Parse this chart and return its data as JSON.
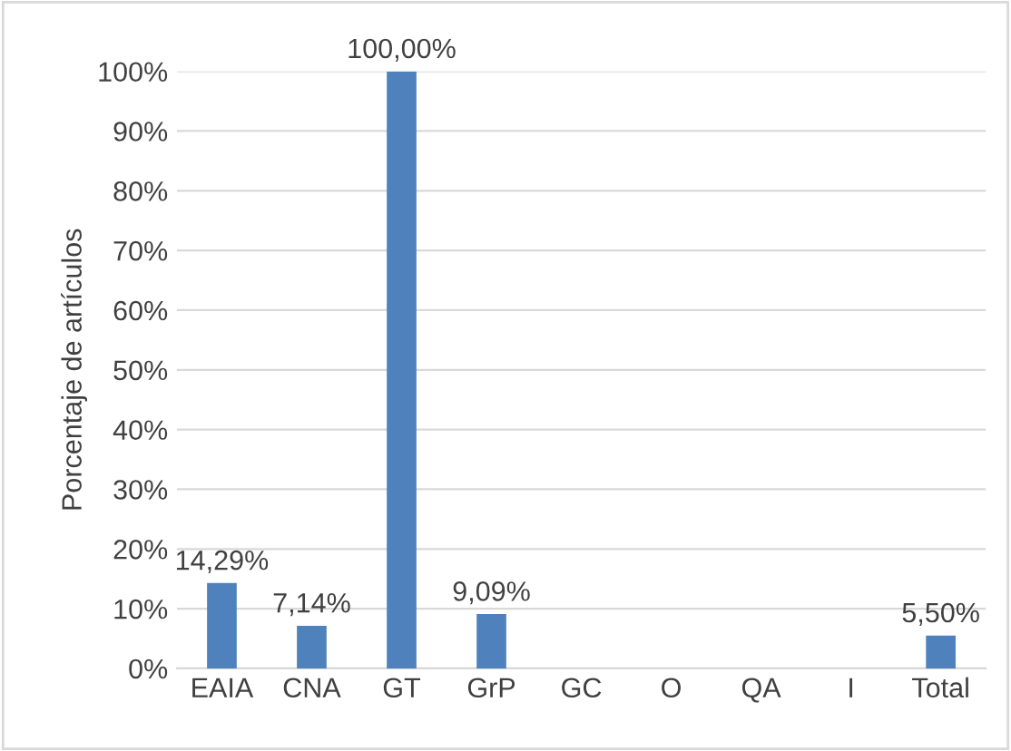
{
  "chart_data": {
    "type": "bar",
    "ylabel": "Porcentaje de artículos",
    "categories": [
      "EAIA",
      "CNA",
      "GT",
      "GrP",
      "GC",
      "O",
      "QA",
      "I",
      "Total"
    ],
    "values": [
      14.29,
      7.14,
      100,
      9.09,
      0,
      0,
      0,
      0,
      5.5
    ],
    "value_labels": [
      "14,29%",
      "7,14%",
      "100,00%",
      "9,09%",
      null,
      null,
      null,
      null,
      "5,50%"
    ],
    "color": "#4f81bd",
    "ylim": [
      0,
      100
    ],
    "yticks": [
      {
        "value": 0,
        "label": "0%"
      },
      {
        "value": 10,
        "label": "10%"
      },
      {
        "value": 20,
        "label": "20%"
      },
      {
        "value": 30,
        "label": "30%"
      },
      {
        "value": 40,
        "label": "40%"
      },
      {
        "value": 50,
        "label": "50%"
      },
      {
        "value": 60,
        "label": "60%"
      },
      {
        "value": 70,
        "label": "70%"
      },
      {
        "value": 80,
        "label": "80%"
      },
      {
        "value": 90,
        "label": "90%"
      },
      {
        "value": 100,
        "label": "100%"
      }
    ],
    "grid": "y"
  }
}
